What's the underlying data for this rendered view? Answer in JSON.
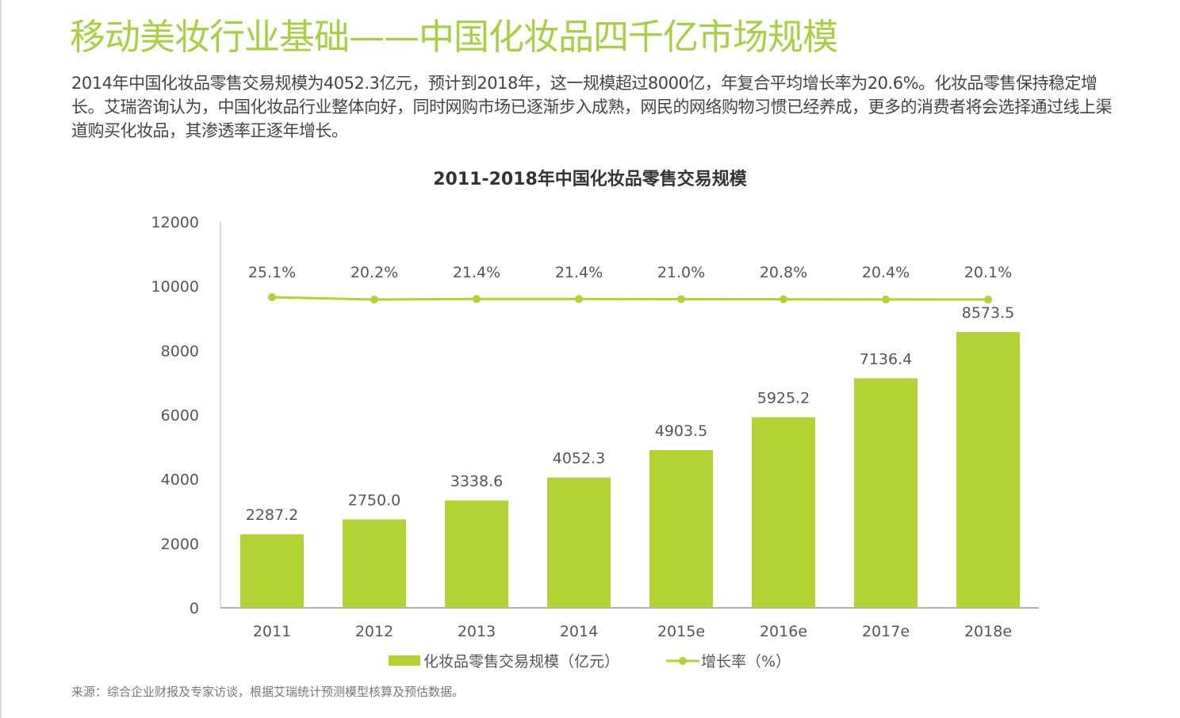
{
  "title": "移动美妆行业基础——中国化妆品四千亿市场规模",
  "paragraph": "2014年中国化妆品零售交易规模为4052.3亿元，预计到2018年，这一规模超过8000亿，年复合平均增长率为20.6%。化妆品零售保持稳定增长。艾瑞咨询认为，中国化妆品行业整体向好，同时网购市场已逐渐步入成熟，网民的网络购物习惯已经养成，更多的消费者将会选择通过线上渠道购买化妆品，其渗透率正逐年增长。",
  "source": "来源：综合企业财报及专家访谈，根据艾瑞统计预测模型核算及预估数据。",
  "colors": {
    "accent": "#a8cf45",
    "bar": "#b3d235",
    "line": "#b3d235"
  },
  "chart_data": {
    "type": "bar",
    "title": "2011-2018年中国化妆品零售交易规模",
    "categories": [
      "2011",
      "2012",
      "2013",
      "2014",
      "2015e",
      "2016e",
      "2017e",
      "2018e"
    ],
    "ylim": [
      0,
      12000
    ],
    "yticks": [
      "0",
      "2000",
      "4000",
      "6000",
      "8000",
      "10000",
      "12000"
    ],
    "grid": false,
    "legend_position": "bottom",
    "series": [
      {
        "name": "化妆品零售交易规模（亿元）",
        "type": "bar",
        "values": [
          2287.2,
          2750.0,
          3338.6,
          4052.3,
          4903.5,
          5925.2,
          7136.4,
          8573.5
        ],
        "labels": [
          "2287.2",
          "2750.0",
          "3338.6",
          "4052.3",
          "4903.5",
          "5925.2",
          "7136.4",
          "8573.5"
        ]
      },
      {
        "name": "增长率（%）",
        "type": "line",
        "values": [
          25.1,
          20.2,
          21.4,
          21.4,
          21.0,
          20.8,
          20.4,
          20.1
        ],
        "labels": [
          "25.1%",
          "20.2%",
          "21.4%",
          "21.4%",
          "21.0%",
          "20.8%",
          "20.4%",
          "20.1%"
        ]
      }
    ]
  }
}
